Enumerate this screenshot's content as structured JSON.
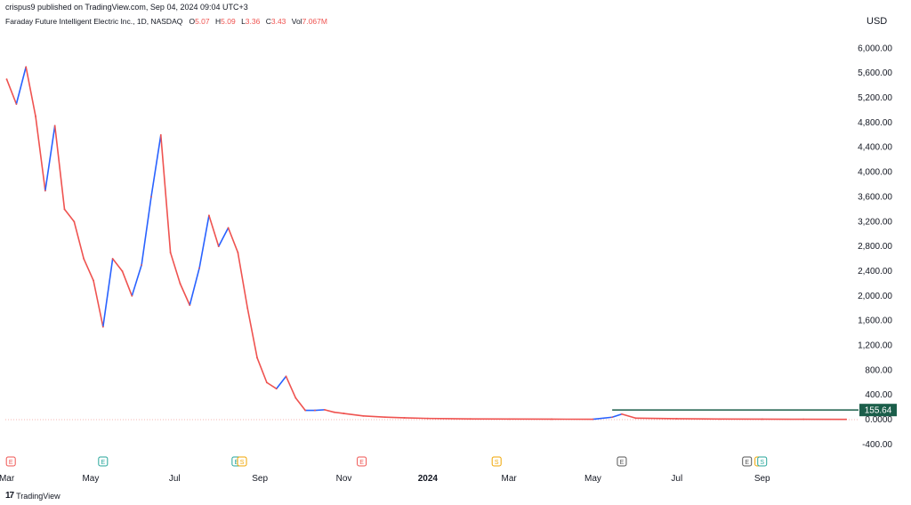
{
  "header": {
    "published": "crispus9 published on TradingView.com, Sep 04, 2024 09:04 UTC+3"
  },
  "symbol": {
    "name": "Faraday Future Intelligent Electric Inc., 1D, NASDAQ",
    "open_label": "O",
    "open": "5.07",
    "high_label": "H",
    "high": "5.09",
    "low_label": "L",
    "low": "3.36",
    "close_label": "C",
    "close": "3.43",
    "vol_label": "Vol",
    "vol": "7.067M"
  },
  "currency": "USD",
  "price_tag": "155.64",
  "footer": {
    "brand": "TradingView"
  },
  "colors": {
    "up": "#2962ff",
    "down": "#ef5350",
    "hline": "#1b5e4a",
    "axis_text": "#131722"
  },
  "events": [
    {
      "label": "E",
      "date": "2022-03-04",
      "color": "#ef5350"
    },
    {
      "label": "E",
      "date": "2022-05-10",
      "color": "#26a69a"
    },
    {
      "label": "E",
      "date": "2022-08-15",
      "color": "#26a69a"
    },
    {
      "label": "S",
      "date": "2022-08-19",
      "color": "#f0a500"
    },
    {
      "label": "E",
      "date": "2022-11-14",
      "color": "#ef5350"
    },
    {
      "label": "S",
      "date": "2023-02-20",
      "color": "#f0a500"
    },
    {
      "label": "E",
      "date": "2023-05-22",
      "color": "#555555"
    },
    {
      "label": "E",
      "date": "2023-08-21",
      "color": "#555555"
    },
    {
      "label": "E",
      "date": "2023-08-30",
      "color": "#f0a500"
    },
    {
      "label": "S",
      "date": "2023-09-01",
      "color": "#26a69a"
    }
  ],
  "chart_data": {
    "type": "line",
    "title": "Faraday Future Intelligent Electric Inc., 1D, NASDAQ",
    "y_tick_labels": [
      "-400.00",
      "0.0000",
      "400.00",
      "800.00",
      "1,200.00",
      "1,600.00",
      "2,000.00",
      "2,400.00",
      "2,800.00",
      "3,200.00",
      "3,600.00",
      "4,000.00",
      "4,400.00",
      "4,800.00",
      "5,200.00",
      "5,600.00",
      "6,000.00"
    ],
    "y_ticks": [
      -400,
      0,
      400,
      800,
      1200,
      1600,
      2000,
      2400,
      2800,
      3200,
      3600,
      4000,
      4400,
      4800,
      5200,
      5600,
      6000
    ],
    "x_tick_labels": [
      "Mar",
      "May",
      "Jul",
      "Sep",
      "Nov",
      "2024",
      "Mar",
      "May",
      "Jul",
      "Sep"
    ],
    "x_ticks": [
      "2022-03-01",
      "2022-05-01",
      "2022-07-01",
      "2022-09-01",
      "2022-11-01",
      "2023-01-01",
      "2023-03-01",
      "2023-05-01",
      "2023-07-01",
      "2023-09-01"
    ],
    "ylim": [
      -560,
      6350
    ],
    "xlim": [
      "2022-02-28",
      "2023-11-10"
    ],
    "horizontal_line": {
      "value": 155.64,
      "start": "2023-05-15"
    },
    "series": [
      {
        "x": [
          "2022-03-01",
          "2022-03-08",
          "2022-03-15",
          "2022-03-22",
          "2022-03-29",
          "2022-04-05",
          "2022-04-12",
          "2022-04-19",
          "2022-04-26",
          "2022-05-03",
          "2022-05-10",
          "2022-05-17",
          "2022-05-24",
          "2022-05-31",
          "2022-06-07",
          "2022-06-14",
          "2022-06-21",
          "2022-06-28",
          "2022-07-05",
          "2022-07-12",
          "2022-07-19",
          "2022-07-26",
          "2022-08-02",
          "2022-08-09",
          "2022-08-16",
          "2022-08-23",
          "2022-08-30",
          "2022-09-06",
          "2022-09-13",
          "2022-09-20",
          "2022-09-27",
          "2022-10-04",
          "2022-10-11",
          "2022-10-18",
          "2022-10-25",
          "2022-11-01",
          "2022-11-15",
          "2022-12-01",
          "2022-12-15",
          "2023-01-01",
          "2023-02-01",
          "2023-03-01",
          "2023-04-01",
          "2023-05-01",
          "2023-05-15",
          "2023-05-22",
          "2023-06-01",
          "2023-07-01",
          "2023-08-01",
          "2023-09-01",
          "2023-10-01",
          "2023-11-01"
        ],
        "values": [
          5500,
          5100,
          5700,
          4900,
          3700,
          4750,
          3400,
          3200,
          2600,
          2250,
          1500,
          2600,
          2400,
          2000,
          2500,
          3600,
          4600,
          2700,
          2200,
          1850,
          2450,
          3300,
          2800,
          3100,
          2700,
          1800,
          1000,
          600,
          500,
          700,
          350,
          150,
          150,
          160,
          120,
          100,
          60,
          40,
          30,
          20,
          12,
          10,
          8,
          6,
          40,
          90,
          25,
          15,
          10,
          8,
          6,
          5
        ]
      }
    ]
  }
}
